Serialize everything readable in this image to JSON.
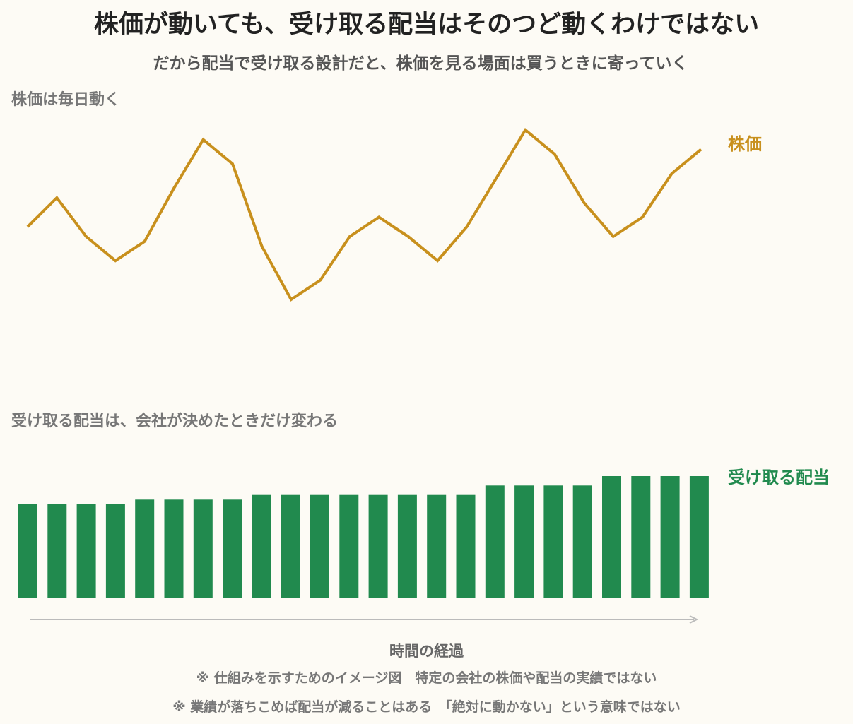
{
  "title": "株価が動いても、受け取る配当はそのつど動くわけではない",
  "subtitle": "だから配当で受け取る設計だと、株価を見る場面は買うときに寄っていく",
  "top_panel_label": "株価は毎日動く",
  "bottom_panel_label": "受け取る配当は、会社が決めたときだけ変わる",
  "axis_label": "時間の経過",
  "notes": [
    "※ 仕組みを示すためのイメージ図　特定の会社の株価や配当の実績ではない",
    "※ 業績が落ちこめば配当が減ることはある　「絶対に動かない」という意味ではない"
  ],
  "colors": {
    "price": "#c8901d",
    "dividend": "#218a4e",
    "axis": "#bbbbbb"
  },
  "chart_data": [
    {
      "type": "line",
      "series": [
        {
          "name": "株価",
          "values": [
            50,
            56,
            48,
            43,
            47,
            58,
            68,
            63,
            46,
            35,
            39,
            48,
            52,
            48,
            43,
            50,
            60,
            70,
            65,
            55,
            48,
            52,
            61,
            66
          ]
        }
      ]
    },
    {
      "type": "bar",
      "series": [
        {
          "name": "受け取る配当",
          "values": [
            100,
            100,
            100,
            100,
            105,
            105,
            105,
            105,
            110,
            110,
            110,
            110,
            110,
            110,
            110,
            110,
            120,
            120,
            120,
            120,
            130,
            130,
            130,
            130
          ]
        }
      ]
    }
  ]
}
